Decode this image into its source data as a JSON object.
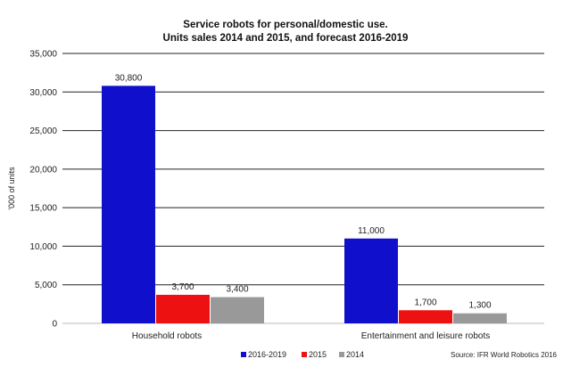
{
  "chart_data": {
    "type": "bar",
    "title": "Service robots for personal/domestic use.",
    "subtitle": "Units sales 2014 and 2015, and forecast 2016-2019",
    "ylabel": "'000 of units",
    "xlabel": "",
    "ylim": [
      0,
      35000
    ],
    "yticks": [
      0,
      5000,
      10000,
      15000,
      20000,
      25000,
      30000,
      35000
    ],
    "ytick_labels": [
      "0",
      "5,000",
      "10,000",
      "15,000",
      "20,000",
      "25,000",
      "30,000",
      "35,000"
    ],
    "grid": true,
    "legend_position": "bottom-center",
    "categories": [
      "Household robots",
      "Entertainment and leisure robots"
    ],
    "series": [
      {
        "name": "2016-2019",
        "color": "#1010cc",
        "values": [
          30800,
          11000
        ],
        "labels": [
          "30,800",
          "11,000"
        ]
      },
      {
        "name": "2015",
        "color": "#ee1111",
        "values": [
          3700,
          1700
        ],
        "labels": [
          "3,700",
          "1,700"
        ]
      },
      {
        "name": "2014",
        "color": "#999999",
        "values": [
          3400,
          1300
        ],
        "labels": [
          "3,400",
          "1,300"
        ]
      }
    ],
    "source": "Source: IFR World Robotics 2016"
  }
}
